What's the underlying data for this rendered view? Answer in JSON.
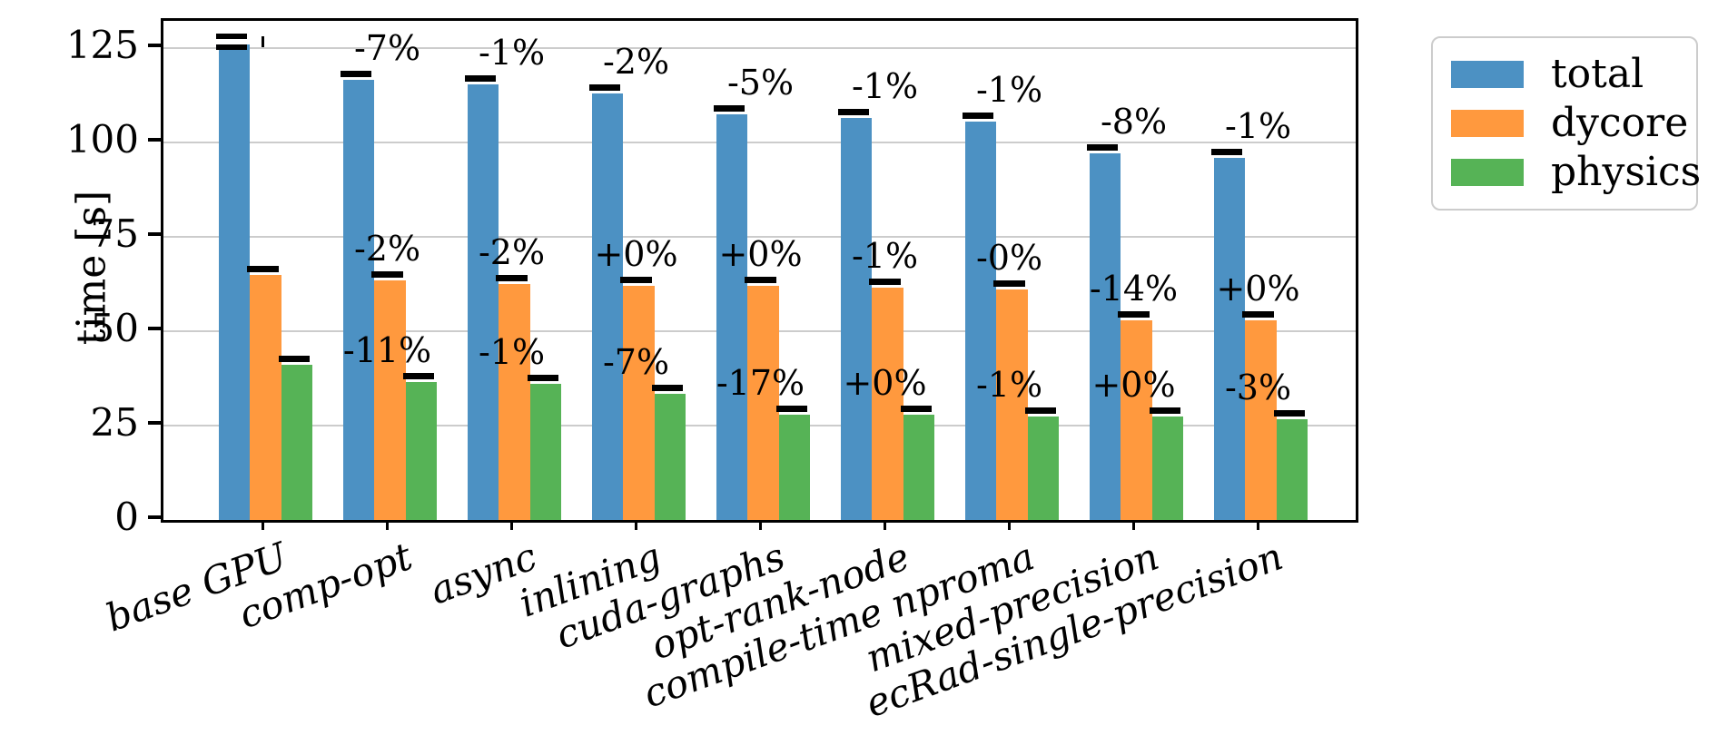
{
  "chart_data": {
    "type": "bar",
    "title": "",
    "xlabel": "",
    "ylabel": "time [s]",
    "ylim": [
      0,
      132
    ],
    "yticks": [
      0,
      25,
      50,
      75,
      100,
      125
    ],
    "grid": "horizontal",
    "legend_position": "outside-upper-right",
    "categories": [
      "base GPU",
      "comp-opt",
      "async",
      "inlining",
      "cuda-graphs",
      "opt-rank-node",
      "compile-time nproma",
      "mixed-precision",
      "ecRad-single-precision"
    ],
    "series": [
      {
        "name": "total",
        "color": "#4C91C3",
        "values": [
          126,
          116.5,
          115.5,
          113,
          107.5,
          106.5,
          105.5,
          97,
          96
        ],
        "annotations": [
          "",
          "-7%",
          "-1%",
          "-2%",
          "-5%",
          "-1%",
          "-1%",
          "-8%",
          "-1%"
        ],
        "errors": [
          1.5,
          0,
          0,
          0,
          0,
          0,
          0,
          0,
          0
        ]
      },
      {
        "name": "dycore",
        "color": "#FF993E",
        "values": [
          65,
          63.5,
          62.5,
          62,
          62,
          61.5,
          61,
          53,
          53
        ],
        "annotations": [
          "",
          "-2%",
          "-2%",
          "+0%",
          "+0%",
          "-1%",
          "-0%",
          "-14%",
          "+0%"
        ],
        "errors": [
          0,
          0,
          0,
          0,
          0,
          0,
          0,
          0,
          0
        ]
      },
      {
        "name": "physics",
        "color": "#56B356",
        "values": [
          41,
          36.5,
          36,
          33.5,
          28,
          28,
          27.5,
          27.5,
          26.8
        ],
        "annotations": [
          "",
          "-11%",
          "-1%",
          "-7%",
          "-17%",
          "+0%",
          "-1%",
          "+0%",
          "-3%"
        ],
        "errors": [
          0,
          0,
          0,
          0,
          0,
          0,
          0,
          0,
          0
        ]
      }
    ]
  }
}
